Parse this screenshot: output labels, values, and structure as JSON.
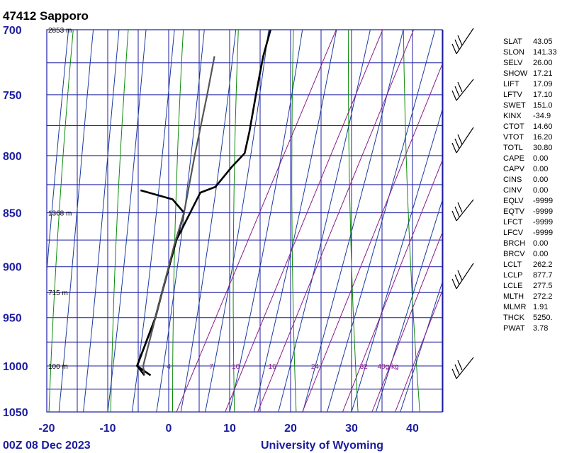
{
  "header": {
    "station": "47412  Sapporo"
  },
  "footer": {
    "time": "00Z 08 Dec 2023",
    "source": "University of Wyoming"
  },
  "chart_data": {
    "type": "skew-t",
    "xlabel": "",
    "ylabel": "",
    "temperature_ticks": [
      -20,
      -10,
      0,
      10,
      20,
      30,
      40
    ],
    "pressure_ticks": [
      700,
      750,
      800,
      850,
      900,
      950,
      1000,
      1050
    ],
    "xlim": [
      -20,
      45
    ],
    "ylim": [
      1050,
      700
    ],
    "height_labels": [
      {
        "p": 700,
        "text": "2853 m"
      },
      {
        "p": 850,
        "text": "1368 m"
      },
      {
        "p": 925,
        "text": "715 m"
      },
      {
        "p": 1000,
        "text": "100 m"
      }
    ],
    "mixing_ratio_labels": [
      {
        "t": 0,
        "text": "4"
      },
      {
        "t": 7,
        "text": "7"
      },
      {
        "t": 11,
        "text": "10"
      },
      {
        "t": 17,
        "text": "16"
      },
      {
        "t": 24,
        "text": "24"
      },
      {
        "t": 32,
        "text": "32"
      },
      {
        "t": 36,
        "text": "40g/kg"
      }
    ],
    "series": [
      {
        "name": "",
        "role": "dewpoint",
        "color": "#000000",
        "points": [
          [
            -6,
            1010
          ],
          [
            -9,
            1000
          ],
          [
            -10,
            950
          ],
          [
            -11,
            925
          ],
          [
            -13,
            875
          ],
          [
            -14,
            850
          ],
          [
            -17,
            838
          ],
          [
            -23,
            830
          ]
        ]
      },
      {
        "name": "",
        "role": "temperature",
        "color": "#000000",
        "points": [
          [
            -7,
            1010
          ],
          [
            -9,
            1000
          ],
          [
            -10,
            950
          ],
          [
            -11,
            925
          ],
          [
            -13,
            875
          ],
          [
            -13,
            850
          ],
          [
            -13,
            832
          ],
          [
            -11,
            827
          ],
          [
            -10,
            810
          ],
          [
            -9,
            798
          ],
          [
            -10,
            780
          ],
          [
            -12,
            750
          ],
          [
            -13,
            735
          ],
          [
            -14,
            720
          ],
          [
            -15,
            700
          ]
        ]
      },
      {
        "name": "",
        "role": "parcel",
        "color": "#555555",
        "points": [
          [
            -7,
            1010
          ],
          [
            -8,
            1000
          ],
          [
            -10,
            950
          ],
          [
            -11,
            925
          ],
          [
            -13,
            878
          ],
          [
            -14,
            850
          ],
          [
            -17,
            800
          ],
          [
            -20,
            750
          ],
          [
            -22,
            720
          ]
        ]
      }
    ],
    "grid": true
  },
  "indices": [
    {
      "key": "SLAT",
      "value": "43.05"
    },
    {
      "key": "SLON",
      "value": "141.33"
    },
    {
      "key": "SELV",
      "value": "26.00"
    },
    {
      "key": "SHOW",
      "value": "17.21"
    },
    {
      "key": "LIFT",
      "value": "17.09"
    },
    {
      "key": "LFTV",
      "value": "17.10"
    },
    {
      "key": "SWET",
      "value": "151.0"
    },
    {
      "key": "KINX",
      "value": "-34.9"
    },
    {
      "key": "CTOT",
      "value": "14.60"
    },
    {
      "key": "VTOT",
      "value": "16.20"
    },
    {
      "key": "TOTL",
      "value": "30.80"
    },
    {
      "key": "CAPE",
      "value": "0.00"
    },
    {
      "key": "CAPV",
      "value": "0.00"
    },
    {
      "key": "CINS",
      "value": "0.00"
    },
    {
      "key": "CINV",
      "value": "0.00"
    },
    {
      "key": "EQLV",
      "value": "-9999"
    },
    {
      "key": "EQTV",
      "value": "-9999"
    },
    {
      "key": "LFCT",
      "value": "-9999"
    },
    {
      "key": "LFCV",
      "value": "-9999"
    },
    {
      "key": "BRCH",
      "value": "0.00"
    },
    {
      "key": "BRCV",
      "value": "0.00"
    },
    {
      "key": "LCLT",
      "value": "262.2"
    },
    {
      "key": "LCLP",
      "value": "877.7"
    },
    {
      "key": "LCLE",
      "value": "277.5"
    },
    {
      "key": "MLTH",
      "value": "272.2"
    },
    {
      "key": "MLMR",
      "value": "1.91"
    },
    {
      "key": "THCK",
      "value": "5250."
    },
    {
      "key": "PWAT",
      "value": "3.78"
    }
  ],
  "colors": {
    "grid": "#1c1ca0",
    "dry_adiabat": "#0a8a0a",
    "moist_adiabat": "#1a3aa0",
    "mixing_ratio": "#8a1a8a",
    "axis_labels": "#1c1ca0"
  }
}
